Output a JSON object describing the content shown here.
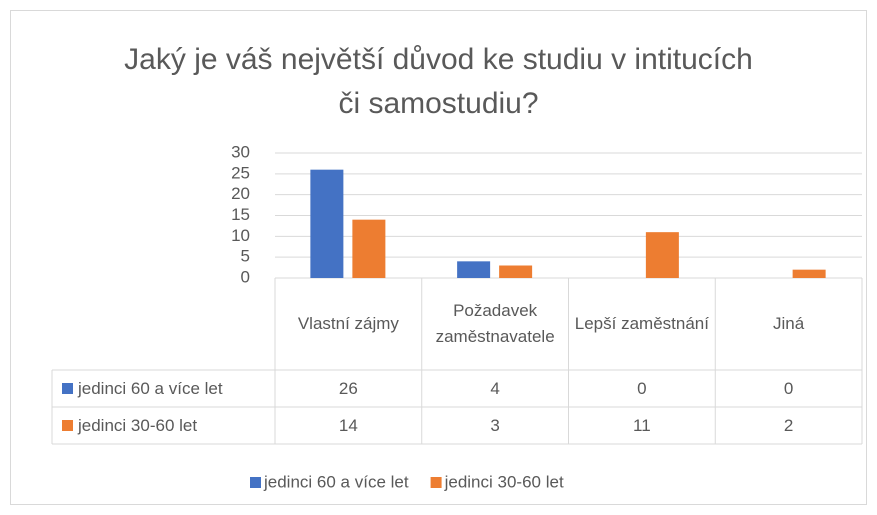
{
  "chart_data": {
    "type": "bar",
    "title": "Jaký je váš největší důvod ke studiu v intitucích či samostudiu?",
    "categories": [
      "Vlastní zájmy",
      "Požadavek zaměstnavatele",
      "Lepší zaměstnání",
      "Jiná"
    ],
    "series": [
      {
        "name": "jedinci 60 a více let",
        "color": "#4472c4",
        "values": [
          26,
          4,
          0,
          0
        ]
      },
      {
        "name": "jedinci 30-60 let",
        "color": "#ed7d31",
        "values": [
          14,
          3,
          11,
          2
        ]
      }
    ],
    "ylim": [
      0,
      30
    ],
    "yticks": [
      0,
      5,
      10,
      15,
      20,
      25,
      30
    ],
    "grid": true,
    "data_table": true,
    "legend": "bottom"
  }
}
